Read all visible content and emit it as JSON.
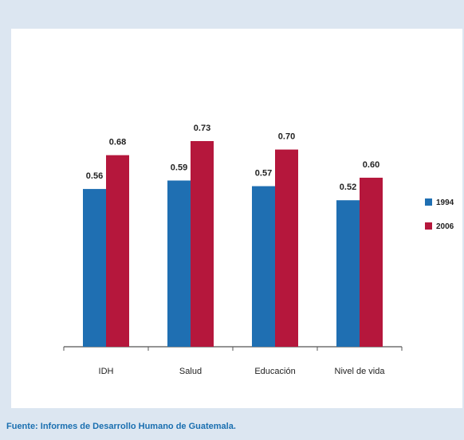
{
  "chart_data": {
    "type": "bar",
    "categories": [
      "IDH",
      "Salud",
      "Educación",
      "Nivel de vida"
    ],
    "series": [
      {
        "name": "1994",
        "values": [
          0.56,
          0.59,
          0.57,
          0.52
        ],
        "color": "#1f6fb2"
      },
      {
        "name": "2006",
        "values": [
          0.68,
          0.73,
          0.7,
          0.6
        ],
        "color": "#b5173c"
      }
    ],
    "value_labels": [
      [
        "0.56",
        "0.59",
        "0.57",
        "0.52"
      ],
      [
        "0.68",
        "0.73",
        "0.70",
        "0.60"
      ]
    ],
    "ylim": [
      0,
      0.8
    ],
    "grid": false,
    "legend_position": "right"
  },
  "source": "Fuente: Informes de Desarrollo Humano de Guatemala."
}
